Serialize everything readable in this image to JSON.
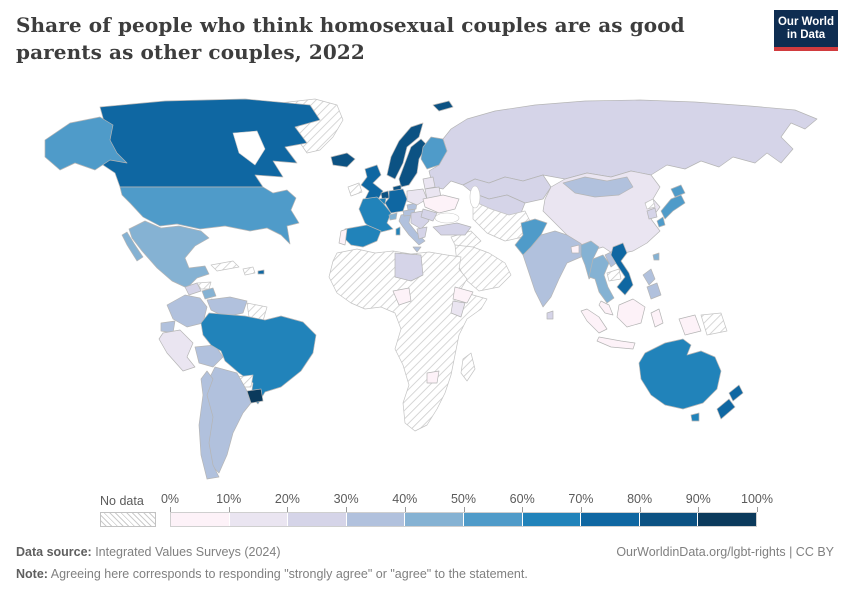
{
  "header": {
    "title": "Share of people who think homosexual couples are as good parents as other couples, 2022"
  },
  "logo": {
    "line1": "Our World",
    "line2": "in Data",
    "bg_color": "#0e2d51",
    "accent_color": "#d13b3e"
  },
  "legend": {
    "no_data_label": "No data",
    "ticks": [
      "0%",
      "10%",
      "20%",
      "30%",
      "40%",
      "50%",
      "60%",
      "70%",
      "80%",
      "90%",
      "100%"
    ]
  },
  "chart_data": {
    "type": "heatmap",
    "subtype": "world-choropleth-map",
    "title": "Share of people who think homosexual couples are as good parents as other couples",
    "year": "2022",
    "unit": "% of people agreeing",
    "legend_position": "bottom",
    "bins": [
      {
        "range": "0-10%",
        "color": "#fdf2f8"
      },
      {
        "range": "10-20%",
        "color": "#eae5f1"
      },
      {
        "range": "20-30%",
        "color": "#d5d4e8"
      },
      {
        "range": "30-40%",
        "color": "#b1c1dd"
      },
      {
        "range": "40-50%",
        "color": "#85b2d3"
      },
      {
        "range": "50-60%",
        "color": "#4f9bc9"
      },
      {
        "range": "60-70%",
        "color": "#2183ba"
      },
      {
        "range": "70-80%",
        "color": "#0f67a2"
      },
      {
        "range": "80-90%",
        "color": "#0c5283"
      },
      {
        "range": "90-100%",
        "color": "#0b3a5c"
      }
    ],
    "no_data": {
      "label": "No data",
      "pattern": "diagonal-hatch",
      "hatch_color": "#cccccc"
    },
    "countries": [
      {
        "id": "canada",
        "name": "Canada",
        "bin": 7
      },
      {
        "id": "alaska",
        "name": "United States (Alaska)",
        "bin": 5
      },
      {
        "id": "usa",
        "name": "United States",
        "bin": 5
      },
      {
        "id": "greenland",
        "name": "Greenland",
        "bin": null
      },
      {
        "id": "mexico",
        "name": "Mexico",
        "bin": 4
      },
      {
        "id": "guatemala",
        "name": "Guatemala",
        "bin": 2
      },
      {
        "id": "honduras",
        "name": "Honduras",
        "bin": null
      },
      {
        "id": "nicaragua",
        "name": "Nicaragua",
        "bin": 4
      },
      {
        "id": "panama-costa-rica",
        "name": "Costa Rica / Panama",
        "bin": null
      },
      {
        "id": "cuba",
        "name": "Cuba",
        "bin": null
      },
      {
        "id": "hispaniola",
        "name": "Haiti / Dominican Republic",
        "bin": null
      },
      {
        "id": "puerto-rico",
        "name": "Puerto Rico",
        "bin": 7
      },
      {
        "id": "colombia",
        "name": "Colombia",
        "bin": 3
      },
      {
        "id": "venezuela",
        "name": "Venezuela",
        "bin": 3
      },
      {
        "id": "guyanas",
        "name": "Guyana / Suriname",
        "bin": null
      },
      {
        "id": "ecuador",
        "name": "Ecuador",
        "bin": 3
      },
      {
        "id": "peru",
        "name": "Peru",
        "bin": 1
      },
      {
        "id": "bolivia",
        "name": "Bolivia",
        "bin": 3
      },
      {
        "id": "brazil",
        "name": "Brazil",
        "bin": 6
      },
      {
        "id": "paraguay",
        "name": "Paraguay",
        "bin": null
      },
      {
        "id": "uruguay",
        "name": "Uruguay",
        "bin": 9
      },
      {
        "id": "argentina",
        "name": "Argentina",
        "bin": 3
      },
      {
        "id": "chile",
        "name": "Chile",
        "bin": 3
      },
      {
        "id": "iceland",
        "name": "Iceland",
        "bin": 8
      },
      {
        "id": "svalbard",
        "name": "Svalbard",
        "bin": 8
      },
      {
        "id": "ireland",
        "name": "Ireland",
        "bin": null
      },
      {
        "id": "uk",
        "name": "United Kingdom",
        "bin": 7
      },
      {
        "id": "norway",
        "name": "Norway",
        "bin": 8
      },
      {
        "id": "sweden",
        "name": "Sweden",
        "bin": 8
      },
      {
        "id": "finland",
        "name": "Finland",
        "bin": 5
      },
      {
        "id": "denmark",
        "name": "Denmark",
        "bin": 8
      },
      {
        "id": "netherlands",
        "name": "Netherlands",
        "bin": 8
      },
      {
        "id": "belgium",
        "name": "Belgium",
        "bin": 6
      },
      {
        "id": "germany",
        "name": "Germany",
        "bin": 7
      },
      {
        "id": "france",
        "name": "France",
        "bin": 6
      },
      {
        "id": "spain",
        "name": "Spain",
        "bin": 6
      },
      {
        "id": "portugal",
        "name": "Portugal",
        "bin": 0
      },
      {
        "id": "switzerland",
        "name": "Switzerland",
        "bin": 4
      },
      {
        "id": "italy",
        "name": "Italy",
        "bin": 3
      },
      {
        "id": "corsica-sardinia",
        "name": "Corsica / Sardinia",
        "bin": 6
      },
      {
        "id": "austria",
        "name": "Austria",
        "bin": 3
      },
      {
        "id": "czechia",
        "name": "Czechia",
        "bin": 3
      },
      {
        "id": "poland",
        "name": "Poland",
        "bin": 1
      },
      {
        "id": "baltics",
        "name": "Baltic states",
        "bin": 1
      },
      {
        "id": "belarus",
        "name": "Belarus",
        "bin": 1
      },
      {
        "id": "ukraine",
        "name": "Ukraine",
        "bin": 0
      },
      {
        "id": "romania",
        "name": "Romania",
        "bin": 2
      },
      {
        "id": "balkans",
        "name": "Balkans",
        "bin": 2
      },
      {
        "id": "greece",
        "name": "Greece",
        "bin": 2
      },
      {
        "id": "turkey",
        "name": "Turkey",
        "bin": 2
      },
      {
        "id": "russia",
        "name": "Russia",
        "bin": 2
      },
      {
        "id": "kazakhstan",
        "name": "Kazakhstan",
        "bin": 2
      },
      {
        "id": "central-asia",
        "name": "Central Asia",
        "bin": 2
      },
      {
        "id": "china",
        "name": "China",
        "bin": 1
      },
      {
        "id": "mongolia",
        "name": "Mongolia",
        "bin": 3
      },
      {
        "id": "north-korea",
        "name": "North Korea",
        "bin": null
      },
      {
        "id": "south-korea",
        "name": "South Korea",
        "bin": 2
      },
      {
        "id": "japan",
        "name": "Japan",
        "bin": 5
      },
      {
        "id": "iran-afghanistan",
        "name": "Iran / Afghanistan",
        "bin": null
      },
      {
        "id": "iraq-syria",
        "name": "Iraq / Syria",
        "bin": null
      },
      {
        "id": "arabia",
        "name": "Arabian Peninsula",
        "bin": null
      },
      {
        "id": "pakistan",
        "name": "Pakistan",
        "bin": 5
      },
      {
        "id": "india",
        "name": "India",
        "bin": 3
      },
      {
        "id": "sri-lanka",
        "name": "Sri Lanka",
        "bin": 2
      },
      {
        "id": "bangladesh",
        "name": "Bangladesh",
        "bin": 0
      },
      {
        "id": "myanmar",
        "name": "Myanmar",
        "bin": 4
      },
      {
        "id": "thailand",
        "name": "Thailand",
        "bin": 4
      },
      {
        "id": "laos",
        "name": "Laos",
        "bin": 3
      },
      {
        "id": "cambodia",
        "name": "Cambodia",
        "bin": null
      },
      {
        "id": "vietnam",
        "name": "Vietnam",
        "bin": 7
      },
      {
        "id": "malaysia",
        "name": "Malaysia",
        "bin": 0
      },
      {
        "id": "sumatra",
        "name": "Indonesia (Sumatra)",
        "bin": 0
      },
      {
        "id": "java",
        "name": "Indonesia (Java)",
        "bin": 0
      },
      {
        "id": "borneo",
        "name": "Borneo",
        "bin": 0
      },
      {
        "id": "sulawesi",
        "name": "Indonesia (Sulawesi)",
        "bin": 0
      },
      {
        "id": "west-papua",
        "name": "Indonesia (Papua)",
        "bin": 0
      },
      {
        "id": "png",
        "name": "Papua New Guinea",
        "bin": null
      },
      {
        "id": "philippines",
        "name": "Philippines",
        "bin": 3
      },
      {
        "id": "taiwan",
        "name": "Taiwan",
        "bin": 4
      },
      {
        "id": "australia",
        "name": "Australia",
        "bin": 6
      },
      {
        "id": "tasmania",
        "name": "Australia (Tasmania)",
        "bin": 6
      },
      {
        "id": "new-zealand",
        "name": "New Zealand",
        "bin": 7
      },
      {
        "id": "africa",
        "name": "Africa (mostly no data)",
        "bin": null
      },
      {
        "id": "madagascar",
        "name": "Madagascar",
        "bin": null
      },
      {
        "id": "libya",
        "name": "Libya",
        "bin": 2
      },
      {
        "id": "nigeria",
        "name": "Nigeria",
        "bin": 0
      },
      {
        "id": "ethiopia",
        "name": "Ethiopia",
        "bin": 0
      },
      {
        "id": "kenya",
        "name": "Kenya",
        "bin": 1
      },
      {
        "id": "zimbabwe",
        "name": "Zimbabwe",
        "bin": 0
      }
    ]
  },
  "footer": {
    "source_label": "Data source:",
    "source_text": " Integrated Values Surveys (2024)",
    "rights_text": "OurWorldinData.org/lgbt-rights | CC BY",
    "note_label": "Note:",
    "note_text": " Agreeing here corresponds to responding \"strongly agree\" or \"agree\" to the statement."
  }
}
